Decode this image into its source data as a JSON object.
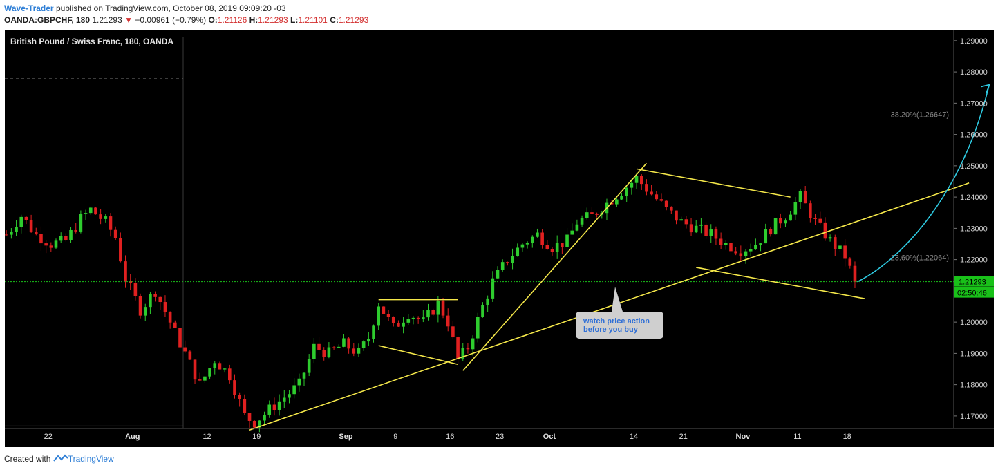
{
  "header": {
    "author": "Wave-Trader",
    "published_text": "published on TradingView.com, October 08, 2019 09:09:20 -03",
    "symbol": "OANDA:GBPCHF, 180",
    "last": "1.21293",
    "change": "−0.00961 (−0.79%)",
    "o_label": "O:",
    "o": "1.21126",
    "h_label": "H:",
    "h": "1.21293",
    "l_label": "L:",
    "l": "1.21101",
    "c_label": "C:",
    "c": "1.21293"
  },
  "footer": {
    "created_with": "Created with",
    "brand": "TradingView"
  },
  "colors": {
    "up": "#2ecc2e",
    "down": "#e02020",
    "trend": "#f5e84a",
    "arrow": "#2ec9e0",
    "price": "#19c119",
    "background": "#000000"
  },
  "chart_data": {
    "type": "candlestick",
    "title": "British Pound / Swiss Franc, 180, OANDA",
    "ylim": [
      1.166,
      1.2935
    ],
    "y_ticks": [
      "1.29000",
      "1.28000",
      "1.27000",
      "1.26000",
      "1.25000",
      "1.24000",
      "1.23000",
      "1.22000",
      "1.21000",
      "1.20000",
      "1.19000",
      "1.18000",
      "1.17000"
    ],
    "x_ticks": [
      "22",
      "Aug",
      "12",
      "19",
      "Sep",
      "9",
      "16",
      "23",
      "Oct",
      "14",
      "21",
      "Nov",
      "11",
      "18"
    ],
    "current_price": "1.21293",
    "countdown": "02:50:46",
    "fib_levels": [
      {
        "label": "38.20%(1.26647)",
        "value": 1.26647
      },
      {
        "label": "23.60%(1.22064)",
        "value": 1.22064
      }
    ],
    "annotation": "watch price action before you buy",
    "price_path": [
      [
        0,
        1.228
      ],
      [
        3,
        1.234
      ],
      [
        6,
        1.228
      ],
      [
        9,
        1.225
      ],
      [
        12,
        1.226
      ],
      [
        15,
        1.233
      ],
      [
        17,
        1.236
      ],
      [
        20,
        1.232
      ],
      [
        22,
        1.227
      ],
      [
        24,
        1.214
      ],
      [
        27,
        1.204
      ],
      [
        30,
        1.21
      ],
      [
        33,
        1.2
      ],
      [
        36,
        1.19
      ],
      [
        39,
        1.18
      ],
      [
        42,
        1.188
      ],
      [
        45,
        1.183
      ],
      [
        48,
        1.17
      ],
      [
        50,
        1.168
      ],
      [
        53,
        1.172
      ],
      [
        56,
        1.176
      ],
      [
        59,
        1.18
      ],
      [
        62,
        1.192
      ],
      [
        65,
        1.19
      ],
      [
        68,
        1.193
      ],
      [
        71,
        1.19
      ],
      [
        73,
        1.195
      ],
      [
        75,
        1.206
      ],
      [
        78,
        1.198
      ],
      [
        81,
        1.203
      ],
      [
        84,
        1.2
      ],
      [
        87,
        1.206
      ],
      [
        89,
        1.2
      ],
      [
        91,
        1.188
      ],
      [
        93,
        1.192
      ],
      [
        96,
        1.205
      ],
      [
        98,
        1.213
      ],
      [
        101,
        1.22
      ],
      [
        104,
        1.225
      ],
      [
        107,
        1.228
      ],
      [
        110,
        1.224
      ],
      [
        113,
        1.226
      ],
      [
        115,
        1.232
      ],
      [
        118,
        1.234
      ],
      [
        121,
        1.238
      ],
      [
        124,
        1.242
      ],
      [
        127,
        1.246
      ],
      [
        130,
        1.241
      ],
      [
        133,
        1.236
      ],
      [
        136,
        1.232
      ],
      [
        139,
        1.23
      ],
      [
        142,
        1.228
      ],
      [
        145,
        1.225
      ],
      [
        148,
        1.223
      ],
      [
        151,
        1.225
      ],
      [
        154,
        1.23
      ],
      [
        157,
        1.234
      ],
      [
        160,
        1.24
      ],
      [
        163,
        1.232
      ],
      [
        166,
        1.226
      ],
      [
        169,
        1.221
      ],
      [
        171,
        1.2129
      ]
    ],
    "trendlines": [
      {
        "x1": 49,
        "y1": 1.1655,
        "x2": 194,
        "y2": 1.2445
      },
      {
        "x1": 75,
        "y1": 1.2072,
        "x2": 91,
        "y2": 1.2072
      },
      {
        "x1": 75,
        "y1": 1.1925,
        "x2": 91,
        "y2": 1.1865
      },
      {
        "x1": 92,
        "y1": 1.1845,
        "x2": 129,
        "y2": 1.2508
      },
      {
        "x1": 127,
        "y1": 1.249,
        "x2": 158,
        "y2": 1.24
      },
      {
        "x1": 139,
        "y1": 1.2175,
        "x2": 173,
        "y2": 1.2075
      }
    ]
  }
}
